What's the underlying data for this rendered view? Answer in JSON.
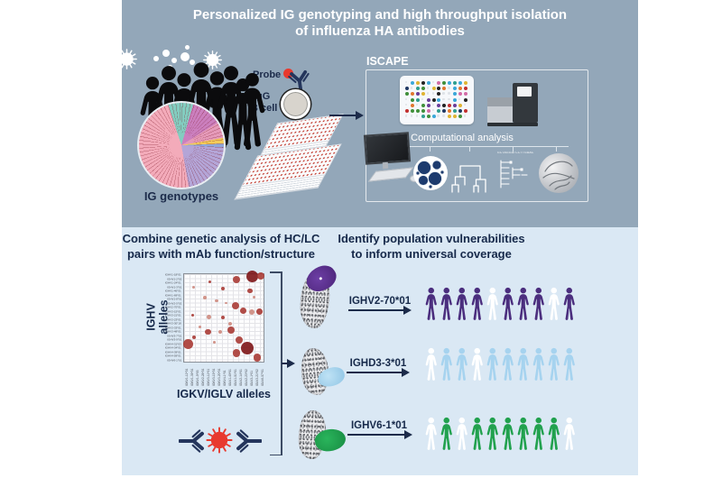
{
  "title": {
    "line1": "Personalized IG genotyping and high throughput isolation",
    "line2": "of influenza HA antibodies"
  },
  "top": {
    "ig_genotypes": "IG genotypes",
    "probe": "Probe",
    "igg": "IgG",
    "bcell": "B cell",
    "iscape": "ISCAPE",
    "computational": "Computational analysis",
    "alignment_text": "GCTAGGATCCTTGAAC"
  },
  "bottom": {
    "left_header": [
      "Combine genetic analysis of HC/LC",
      "pairs with mAb function/structure"
    ],
    "right_header": [
      "Identify population vulnerabilities",
      "to inform universal coverage"
    ],
    "y_axis": "IGHV alleles",
    "x_axis": "IGKV/IGLV alleles",
    "rows": [
      {
        "allele": "IGHV2-70*01",
        "people": [
          "purple",
          "purple",
          "purple",
          "purple",
          "white",
          "purple",
          "purple",
          "purple",
          "white",
          "purple"
        ]
      },
      {
        "allele": "IGHD3-3*01",
        "people": [
          "white",
          "blue",
          "blue",
          "white",
          "blue",
          "blue",
          "blue",
          "blue",
          "blue",
          "blue"
        ]
      },
      {
        "allele": "IGHV6-1*01",
        "people": [
          "white",
          "green",
          "white",
          "green",
          "green",
          "green",
          "green",
          "green",
          "green",
          "white"
        ]
      }
    ]
  },
  "colors": {
    "panel_top": "#93a7b9",
    "panel_bottom": "#dae8f4",
    "navy_text": "#1c2b4a",
    "purple": "#4b2e7e",
    "blue": "#a6d3ef",
    "green": "#21a14e",
    "white": "#ffffff",
    "virus_red": "#e8392e",
    "antibody_navy": "#24355c",
    "bubble": {
      "d": "#7d1416",
      "m": "#a93a34",
      "l": "#cd8a7e"
    }
  },
  "iscape_plate_palette": [
    "#1f3864",
    "#2e9e8f",
    "#e2762d",
    "#c22f2f",
    "#3f8f3a",
    "#6a3d9a",
    "#222222",
    "#d36ba6",
    "#3aa7d9",
    "#e0b432"
  ],
  "chart_data": {
    "type": "bubble",
    "title": "",
    "xlabel": "IGKV/IGLV alleles",
    "ylabel": "IGHV alleles",
    "x_ticks": [
      "IGKV1-12*01",
      "IGKV1-39*01",
      "IGKV1-5*03",
      "IGKV2-28*01",
      "IGKV3-11*01",
      "IGKV3-15*01",
      "IGKV3-20*01",
      "IGKV4-1*01",
      "IGLV1-40*01",
      "IGLV1-51*01",
      "IGLV2-14*01",
      "IGLV2-23*02",
      "IGLV3-1*01",
      "IGLV3-21*02",
      "IGLV6-57*01"
    ],
    "y_ticks": [
      "IGHV1-18*01",
      "IGHV1-2*02",
      "IGHV1-24*01",
      "IGHV1-3*01",
      "IGHV1-46*01",
      "IGHV1-69*01",
      "IGHV1-8*01",
      "IGHV2-5*02",
      "IGHV2-70*01",
      "IGHV3-15*01",
      "IGHV3-21*01",
      "IGHV3-23*01",
      "IGHV3-30*18",
      "IGHV3-33*01",
      "IGHV3-48*01",
      "IGHV3-7*01",
      "IGHV3-9*01",
      "IGHV4-31*03",
      "IGHV4-34*01",
      "IGHV4-39*01",
      "IGHV4-59*01",
      "IGHV6-1*01"
    ],
    "bubbles": [
      {
        "x": 86,
        "y": 3,
        "r": 6.5,
        "c": "d"
      },
      {
        "x": 97,
        "y": 2,
        "r": 4,
        "c": "m"
      },
      {
        "x": 66,
        "y": 6,
        "r": 4,
        "c": "m"
      },
      {
        "x": 32,
        "y": 9,
        "r": 1.6,
        "c": "m"
      },
      {
        "x": 12,
        "y": 15,
        "r": 1.6,
        "c": "l"
      },
      {
        "x": 49,
        "y": 17,
        "r": 2,
        "c": "m"
      },
      {
        "x": 83,
        "y": 19,
        "r": 2.6,
        "c": "m"
      },
      {
        "x": 26,
        "y": 27,
        "r": 1.8,
        "c": "l"
      },
      {
        "x": 41,
        "y": 30,
        "r": 1.6,
        "c": "l"
      },
      {
        "x": 88,
        "y": 26,
        "r": 1.6,
        "c": "l"
      },
      {
        "x": 53,
        "y": 33,
        "r": 1.4,
        "c": "l"
      },
      {
        "x": 65,
        "y": 36,
        "r": 4,
        "c": "m"
      },
      {
        "x": 74,
        "y": 42,
        "r": 3.4,
        "c": "m"
      },
      {
        "x": 85,
        "y": 43,
        "r": 3,
        "c": "l"
      },
      {
        "x": 95,
        "y": 43,
        "r": 3.4,
        "c": "m"
      },
      {
        "x": 11,
        "y": 47,
        "r": 1.6,
        "c": "m"
      },
      {
        "x": 31,
        "y": 49,
        "r": 2.4,
        "c": "l"
      },
      {
        "x": 49,
        "y": 49,
        "r": 2,
        "c": "m"
      },
      {
        "x": 58,
        "y": 57,
        "r": 2,
        "c": "l"
      },
      {
        "x": 20,
        "y": 60,
        "r": 1.4,
        "c": "l"
      },
      {
        "x": 59,
        "y": 64,
        "r": 4.4,
        "c": "m"
      },
      {
        "x": 30,
        "y": 66,
        "r": 3.4,
        "c": "m"
      },
      {
        "x": 46,
        "y": 66,
        "r": 2,
        "c": "l"
      },
      {
        "x": 12,
        "y": 72,
        "r": 2,
        "c": "m"
      },
      {
        "x": 69,
        "y": 75,
        "r": 4,
        "c": "m"
      },
      {
        "x": 38,
        "y": 78,
        "r": 1.4,
        "c": "l"
      },
      {
        "x": 5,
        "y": 80,
        "r": 5.4,
        "c": "m"
      },
      {
        "x": 79,
        "y": 85,
        "r": 7,
        "c": "d"
      },
      {
        "x": 66,
        "y": 90,
        "r": 4.4,
        "c": "m"
      },
      {
        "x": 92,
        "y": 95,
        "r": 4.4,
        "c": "m"
      }
    ]
  }
}
